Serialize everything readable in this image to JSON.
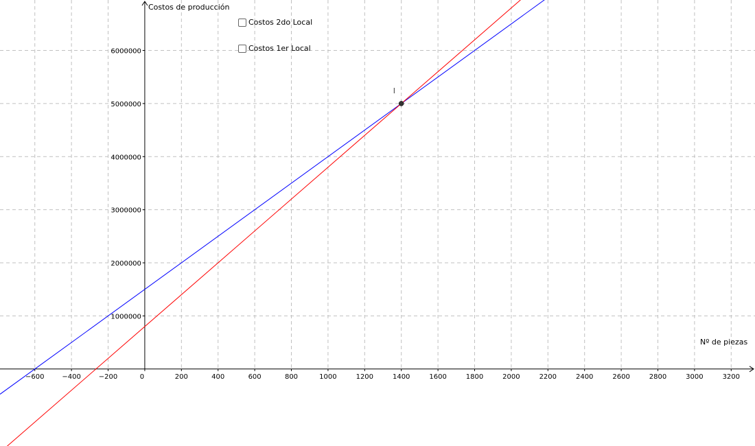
{
  "chart_data": {
    "type": "line",
    "xlabel": "Nº de piezas",
    "ylabel": "Costos de producción",
    "xlim": [
      -790,
      3330
    ],
    "ylim": [
      -1450000,
      6950000
    ],
    "x_ticks": [
      -600,
      -400,
      -200,
      0,
      200,
      400,
      600,
      800,
      1000,
      1200,
      1400,
      1600,
      1800,
      2000,
      2200,
      2400,
      2600,
      2800,
      3000,
      3200
    ],
    "y_ticks": [
      1000000,
      2000000,
      3000000,
      4000000,
      5000000,
      6000000
    ],
    "grid": true,
    "series": [
      {
        "color": "#0000ff",
        "slope": 2500,
        "intercept": 1500000
      },
      {
        "color": "#ff0000",
        "slope": 3000,
        "intercept": 800000
      }
    ],
    "points": [
      {
        "label": "I",
        "x": 1400,
        "y": 5000000,
        "color": "#333333"
      }
    ]
  },
  "controls": {
    "checkboxes": [
      {
        "label": "Costos 2do Local",
        "checked": false
      },
      {
        "label": "Costos 1er Local",
        "checked": false
      }
    ]
  }
}
